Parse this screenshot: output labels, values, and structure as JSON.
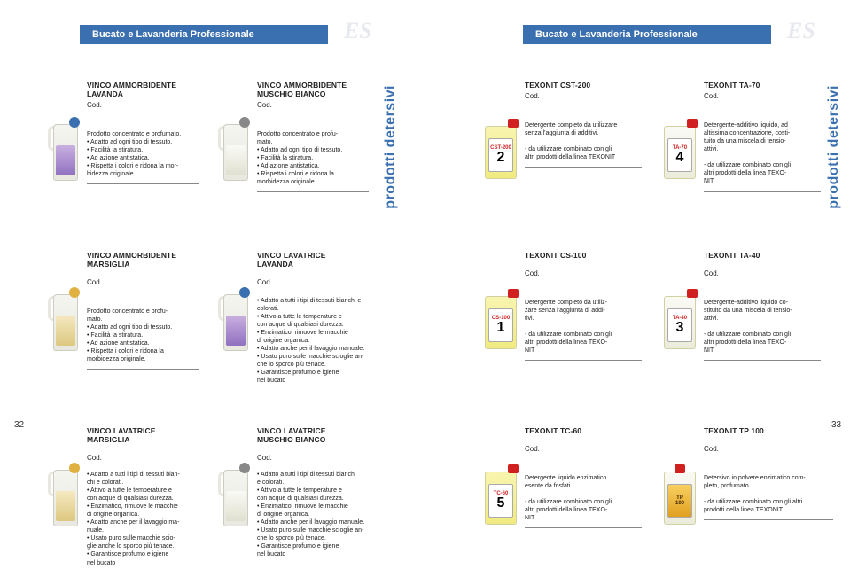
{
  "header": {
    "left": "Bucato e Lavanderia Professionale",
    "right": "Bucato e Lavanderia Professionale",
    "logo": "ES"
  },
  "vtab": "prodotti detersivi",
  "page_left": "32",
  "page_right": "33",
  "products": {
    "p1": {
      "title": "VINCO AMMORBIDENTE\nLAVANDA",
      "cod": "Cod.",
      "desc": "Prodotto concentrato e profumato.\n• Adatto ad ogni tipo di tessuto.\n• Facilità la stiratura.\n• Ad azione antistatica.\n• Rispetta i colori e ridona la mor-\nbidezza originale."
    },
    "p2": {
      "title": "VINCO AMMORBIDENTE\nMUSCHIO BIANCO",
      "cod": "Cod.",
      "desc": "Prodotto concentrato e profu-\nmato.\n• Adatto ad ogni tipo di tessuto.\n• Facilità la stiratura.\n• Ad azione antistatica.\n• Rispetta i colori e ridona la\nmorbidezza originale."
    },
    "p3": {
      "title": "TEXONIT CST-200",
      "cod": "Cod.",
      "desc": "Detergente completo da utilizzare\nsenza l'aggiunta di additivi.\n\n- da utilizzare combinato con gli\naltri prodotti della linea TEXONIT"
    },
    "p4": {
      "title": "TEXONIT TA-70",
      "cod": "Cod.",
      "desc": "Detergente-additivo liquido, ad\naltissima concentrazione, costi-\ntuito da una miscela di tensio-\nattivi.\n\n- da utilizzare combinato con gli\naltri prodotti della linea TEXO-\nNIT"
    },
    "p5": {
      "title": "VINCO AMMORBIDENTE\nMARSIGLIA",
      "cod": "Cod.",
      "desc": "Prodotto concentrato e profu-\nmato.\n• Adatto ad ogni tipo di tessuto.\n• Facilità la stiratura.\n• Ad azione antistatica.\n• Rispetta i colori e ridona la\nmorbidezza originale."
    },
    "p6": {
      "title": "VINCO LAVATRICE\nLAVANDA",
      "cod": "Cod.",
      "desc": "• Adatto a tutti i tipi di tessuti bianchi e\ncolorati.\n• Attivo a tutte le temperature e\ncon acque di qualsiasi durezza.\n• Enzimatico, rimuove le macchie\ndi origine organica.\n• Adatto anche per il lavaggio manuale.\n• Usato puro sulle macchie scioglie an-\nche lo sporco più tenace.\n• Garantisce profumo e igiene\nnel bucato"
    },
    "p7": {
      "title": "TEXONIT CS-100",
      "cod": "Cod.",
      "desc": "Detergente completo da utiliz-\nzare senza l'aggiunta di addi-\ntivi.\n\n- da utilizzare combinato con gli\naltri prodotti della linea TEXO-\nNIT"
    },
    "p8": {
      "title": "TEXONIT TA-40",
      "cod": "Cod.",
      "desc": "Detergente-additivo liquido co-\nstituito da una miscela di tensio-\nattivi.\n\n- da utilizzare combinato con gli\naltri prodotti della linea TEXO-\nNIT"
    },
    "p9": {
      "title": "VINCO LAVATRICE\nMARSIGLIA",
      "cod": "Cod.",
      "desc": "• Adatto a tutti i tipi di tessuti bian-\nchi e colorati.\n• Attivo a tutte le temperature e\ncon acque di qualsiasi durezza.\n• Enzimatico, rimuove le macchie\ndi origine organica.\n• Adatto anche per il lavaggio ma-\nnuale.\n• Usato puro sulle macchie scio-\nglie anche lo sporco più tenace.\n• Garantisce profumo e igiene\nnel bucato"
    },
    "p10": {
      "title": "VINCO LAVATRICE\nMUSCHIO BIANCO",
      "cod": "Cod.",
      "desc": "• Adatto a tutti i tipi di tessuti bianchi\ne colorati.\n• Attivo a tutte le temperature e\ncon acque di qualsiasi durezza.\n• Enzimatico, rimuove le macchie\ndi origine organica.\n• Adatto anche per il lavaggio manuale.\n• Usato puro sulle macchie scioglie an-\nche lo sporco più tenace.\n• Garantisce profumo e igiene\nnel bucato"
    },
    "p11": {
      "title": "TEXONIT TC-60",
      "cod": "Cod.",
      "desc": "Detergente liquido enzimatico\nesente da fosfati.\n\n- da utilizzare combinato con gli\naltri prodotti della linea TEXO-\nNIT"
    },
    "p12": {
      "title": "TEXONIT TP 100",
      "cod": "Cod.",
      "desc": "Detersivo in polvere enzimatico com-\npleto, profumato.\n\n- da utilizzare combinato con gli altri\nprodotti della linea TEXONIT"
    }
  },
  "texonit_labels": {
    "cst200": {
      "top": "CST-200",
      "num": "2"
    },
    "ta70": {
      "top": "TA-70",
      "num": "4"
    },
    "cs100": {
      "top": "CS-100",
      "num": "1"
    },
    "ta40": {
      "top": "TA-40",
      "num": "3"
    },
    "tc60": {
      "top": "TC-60",
      "num": "5"
    },
    "tp100": {
      "top": "TP\n100",
      "num": ""
    }
  }
}
